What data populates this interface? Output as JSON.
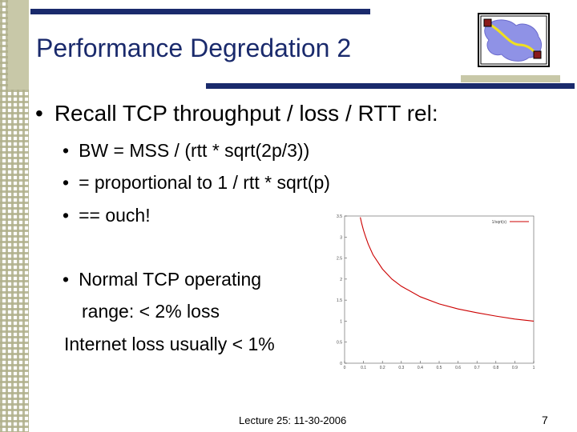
{
  "slide": {
    "title": "Performance Degredation 2",
    "bullets": {
      "main": "Recall TCP throughput / loss / RTT rel:",
      "sub1": "BW = MSS / (rtt * sqrt(2p/3))",
      "sub2": "=  proportional to  1 / rtt * sqrt(p)",
      "sub3": "== ouch!",
      "sub4_line1": "Normal TCP operating",
      "sub4_line2": "range:  < 2% loss",
      "sub4_line3": "Internet loss usually < 1%"
    },
    "footer": "Lecture 25: 11-30-2006",
    "page_number": "7",
    "bullet_char": "•"
  },
  "chart_data": {
    "type": "line",
    "legend": "1/sqrt(x)",
    "legend_position": "top-right",
    "xlim": [
      0,
      1
    ],
    "ylim": [
      0,
      3.5
    ],
    "x_ticks": [
      "0",
      "0.1",
      "0.2",
      "0.3",
      "0.4",
      "0.5",
      "0.6",
      "0.7",
      "0.8",
      "0.9",
      "1"
    ],
    "y_ticks": [
      "0",
      "0.5",
      "1",
      "1.5",
      "2",
      "2.5",
      "3",
      "3.5"
    ],
    "series": [
      {
        "color": "#cc0000",
        "x": [
          0.083,
          0.09,
          0.1,
          0.11,
          0.125,
          0.15,
          0.2,
          0.25,
          0.3,
          0.4,
          0.5,
          0.6,
          0.7,
          0.8,
          0.9,
          1.0
        ],
        "y": [
          3.47,
          3.33,
          3.16,
          3.02,
          2.83,
          2.58,
          2.24,
          2.0,
          1.83,
          1.58,
          1.41,
          1.29,
          1.2,
          1.12,
          1.05,
          1.0
        ]
      }
    ]
  },
  "colors": {
    "title": "#1a2a6c",
    "rule": "#1a2a6c",
    "stripe": "#c8c8a8",
    "curve": "#cc0000"
  }
}
